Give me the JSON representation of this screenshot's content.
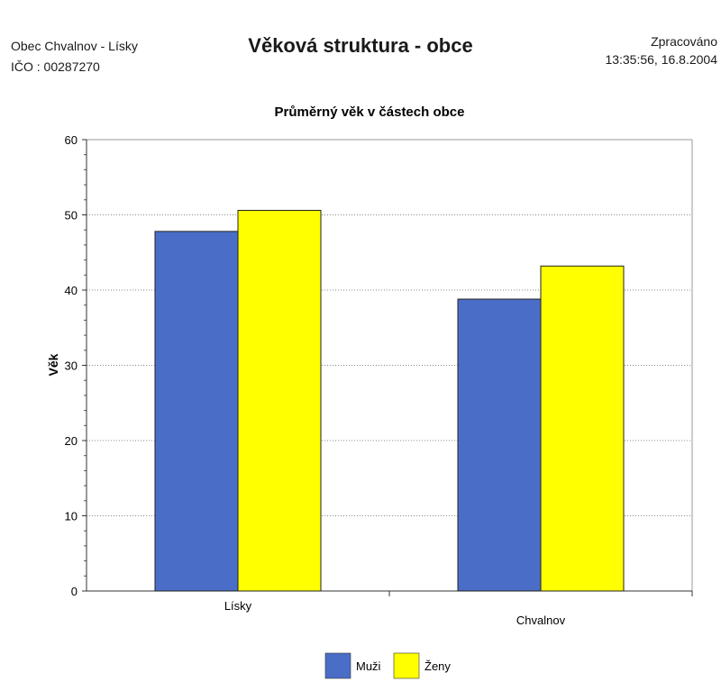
{
  "header": {
    "org_name": "Obec Chvalnov - Lísky",
    "org_id": "IČO : 00287270",
    "report_title": "Věková struktura - obce",
    "processed_label": "Zpracováno",
    "processed_time": "13:35:56, 16.8.2004"
  },
  "chart_data": {
    "type": "bar",
    "title": "Průměrný věk v částech obce",
    "xlabel": "",
    "ylabel": "Věk",
    "ylim": [
      0,
      60
    ],
    "yticks": [
      0,
      10,
      20,
      30,
      40,
      50,
      60
    ],
    "categories": [
      "Lísky",
      "Chvalnov"
    ],
    "series": [
      {
        "name": "Muži",
        "values": [
          47.8,
          38.8
        ],
        "color": "#4a6ec8"
      },
      {
        "name": "Ženy",
        "values": [
          50.6,
          43.2
        ],
        "color": "#ffff00"
      }
    ],
    "grid": true,
    "legend_position": "bottom"
  }
}
